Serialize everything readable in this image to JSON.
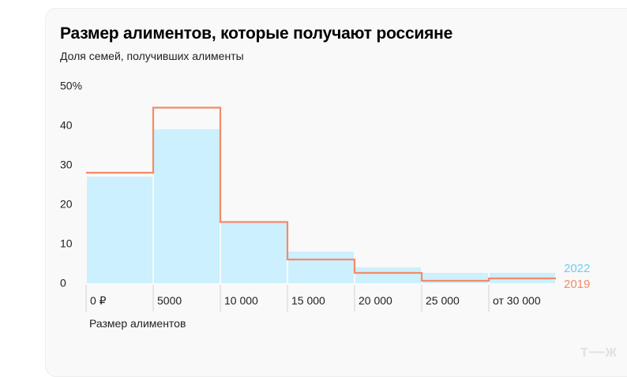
{
  "chart_data": {
    "type": "bar",
    "title": "Размер алиментов, которые получают россияне",
    "subtitle": "Доля семей, получивших алименты",
    "xlabel": "Размер алиментов",
    "ylabel": "",
    "ylim": [
      0,
      50
    ],
    "yticks": [
      "0",
      "10",
      "20",
      "30",
      "40",
      "50%"
    ],
    "yticks_values": [
      0,
      10,
      20,
      30,
      40,
      50
    ],
    "categories": [
      "0 ₽",
      "5000",
      "10 000",
      "15 000",
      "20 000",
      "25 000",
      "от 30 000"
    ],
    "series": [
      {
        "name": "2022",
        "style": "filled-bars",
        "color": "#ccf0fd",
        "label_color": "#6fcdf0",
        "values": [
          27,
          39,
          15.5,
          8,
          4,
          2.6,
          2.6
        ]
      },
      {
        "name": "2019",
        "style": "step-line",
        "color": "#f58a68",
        "values": [
          28,
          44.5,
          15.5,
          6,
          2.6,
          0.6,
          1.2
        ]
      }
    ],
    "grid": false,
    "legend_placement": "right-end"
  },
  "watermark": "т—ж"
}
